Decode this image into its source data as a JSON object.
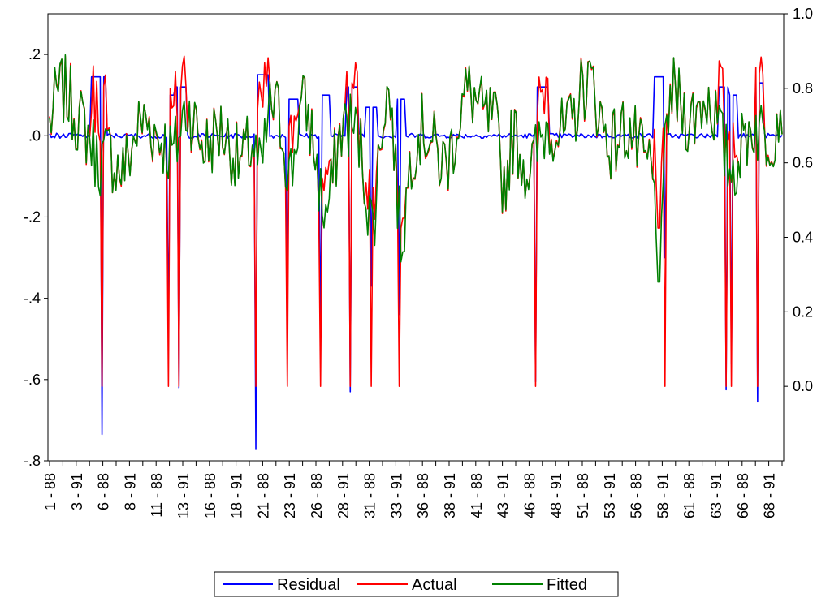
{
  "chart_data": {
    "type": "line",
    "title": "",
    "xlabel": "",
    "ylabel": "",
    "left_axis": {
      "ylim": [
        -0.8,
        0.3
      ],
      "ticks": [
        0.2,
        0.0,
        -0.2,
        -0.4,
        -0.6,
        -0.8
      ],
      "tick_labels": [
        ".2",
        ".0",
        "-.2",
        "-.4",
        "-.6",
        "-.8"
      ]
    },
    "right_axis": {
      "ylim": [
        -0.2,
        1.0
      ],
      "ticks": [
        0.0,
        0.2,
        0.4,
        0.6,
        0.8,
        1.0
      ],
      "tick_labels": [
        "0.0",
        "0.2",
        "0.4",
        "0.6",
        "0.8",
        "1.0"
      ]
    },
    "x_tick_labels": [
      "1 - 88",
      "3 - 91",
      "6 - 88",
      "8 - 91",
      "11 - 88",
      "13 - 91",
      "16 - 88",
      "18 - 91",
      "21 - 88",
      "23 - 91",
      "26 - 88",
      "28 - 91",
      "31 - 88",
      "33 - 91",
      "36 - 88",
      "38 - 91",
      "41 - 88",
      "43 - 91",
      "46 - 88",
      "48 - 91",
      "51 - 88",
      "53 - 91",
      "56 - 88",
      "58 - 91",
      "61 - 88",
      "63 - 91",
      "66 - 88",
      "68 - 91"
    ],
    "n_obs": 420,
    "legend": {
      "placement": "bottom-center",
      "items": [
        {
          "label": "Residual",
          "color": "#0000ff"
        },
        {
          "label": "Actual",
          "color": "#ff0000"
        },
        {
          "label": "Fitted",
          "color": "#008000"
        }
      ]
    },
    "events": [
      {
        "s": 24,
        "e": 32,
        "drop": 30,
        "r": 0.145,
        "rneg": -0.735
      },
      {
        "s": 68,
        "e": 72,
        "drop": 68,
        "r": 0.1,
        "rneg": -0.49
      },
      {
        "s": 72,
        "e": 78,
        "drop": 74,
        "r": 0.12,
        "rneg": -0.62
      },
      {
        "s": 118,
        "e": 125,
        "drop": 118,
        "r": 0.15,
        "rneg": -0.77
      },
      {
        "s": 136,
        "e": 142,
        "drop": 136,
        "r": 0.09,
        "rneg": -0.47
      },
      {
        "s": 155,
        "e": 160,
        "drop": 155,
        "r": 0.1,
        "rneg": -0.5
      },
      {
        "s": 170,
        "e": 176,
        "drop": 172,
        "r": 0.12,
        "rneg": -0.63
      },
      {
        "s": 181,
        "e": 187,
        "drop": 184,
        "r": 0.07,
        "rneg": -0.37
      },
      {
        "s": 199,
        "e": 203,
        "drop": 200,
        "r": 0.09,
        "rneg": -0.44
      },
      {
        "s": 278,
        "e": 285,
        "drop": 278,
        "r": 0.12,
        "rneg": -0.605
      },
      {
        "s": 346,
        "e": 352,
        "drop": 352,
        "r": 0.145,
        "rneg": -0.3
      },
      {
        "s": 383,
        "e": 388,
        "drop": 387,
        "r": 0.12,
        "rneg": -0.625
      },
      {
        "s": 389,
        "e": 393,
        "drop": 390,
        "r": 0.1,
        "rneg": -0.56
      },
      {
        "s": 404,
        "e": 408,
        "drop": 405,
        "r": 0.13,
        "rneg": -0.655
      }
    ],
    "fitted_shape": {
      "baseline": 0.7,
      "dips": [
        {
          "center": 28,
          "width": 6,
          "depth": 0.15
        },
        {
          "center": 72,
          "width": 6,
          "depth": 0.16
        },
        {
          "center": 121,
          "width": 4,
          "depth": 0.2
        },
        {
          "center": 138,
          "width": 4,
          "depth": 0.16
        },
        {
          "center": 158,
          "width": 5,
          "depth": 0.12
        },
        {
          "center": 185,
          "width": 5,
          "depth": 0.3
        },
        {
          "center": 201,
          "width": 4,
          "depth": 0.28
        },
        {
          "center": 260,
          "width": 4,
          "depth": 0.22
        },
        {
          "center": 349,
          "width": 3,
          "depth": 0.4
        }
      ]
    }
  }
}
